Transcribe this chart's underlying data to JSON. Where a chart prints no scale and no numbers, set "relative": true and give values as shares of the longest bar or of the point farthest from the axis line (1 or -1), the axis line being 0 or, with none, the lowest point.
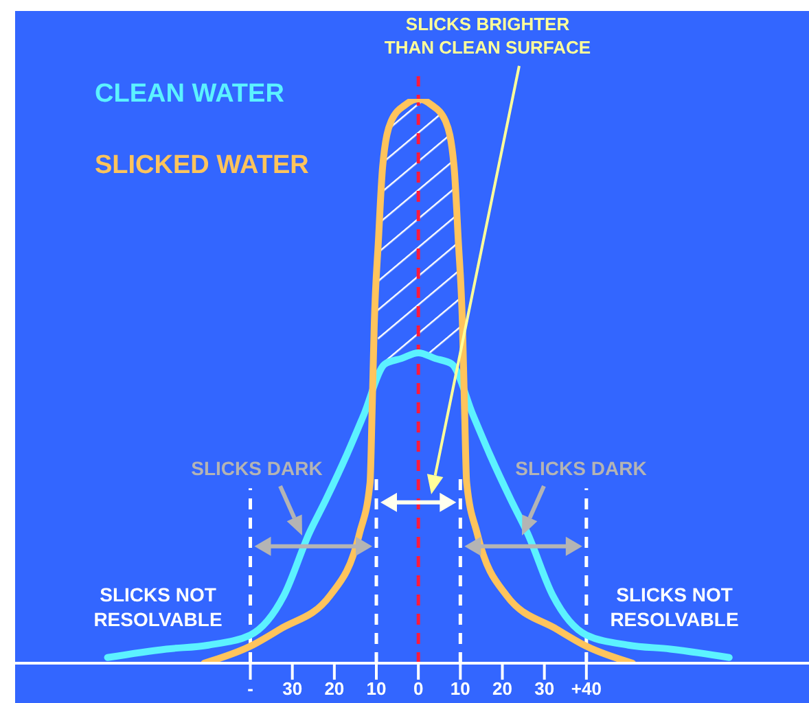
{
  "chart_data": {
    "type": "line",
    "relative": true,
    "legend": "top left",
    "marker": "none",
    "xlim": [
      -96,
      93
    ],
    "xticks": [
      {
        "value": -40,
        "label": "-"
      },
      {
        "value": -30,
        "label": "30"
      },
      {
        "value": -20,
        "label": "20"
      },
      {
        "value": -10,
        "label": "10"
      },
      0,
      10,
      20,
      30,
      {
        "value": 40,
        "label": "+40"
      }
    ],
    "series": [
      {
        "name": "CLEAN WATER",
        "color": "#5cf2ff",
        "x": [
          -74,
          -60,
          -50,
          -40,
          -32,
          -26,
          -22,
          -17,
          -13,
          -8,
          -4,
          0,
          4,
          8,
          13,
          17,
          22,
          26,
          32,
          40,
          50,
          60,
          74
        ],
        "values": [
          0.01,
          0.025,
          0.032,
          0.05,
          0.12,
          0.23,
          0.29,
          0.37,
          0.44,
          0.53,
          0.54,
          0.55,
          0.54,
          0.53,
          0.44,
          0.37,
          0.29,
          0.23,
          0.12,
          0.05,
          0.032,
          0.025,
          0.01
        ]
      },
      {
        "name": "SLICKED WATER",
        "color": "#ffc45c",
        "x": [
          -51,
          -40,
          -33,
          -21,
          -14,
          -11.5,
          -11,
          -10.5,
          -9.5,
          -8.5,
          -6.5,
          -3,
          0,
          3,
          6.5,
          8.5,
          9.5,
          10.5,
          11,
          11.5,
          14,
          21,
          33,
          40,
          51
        ],
        "values": [
          0,
          0.03,
          0.06,
          0.12,
          0.23,
          0.32,
          0.45,
          0.6,
          0.75,
          0.88,
          0.96,
          0.99,
          1,
          0.99,
          0.96,
          0.88,
          0.75,
          0.6,
          0.45,
          0.32,
          0.23,
          0.12,
          0.06,
          0.03,
          0
        ]
      }
    ],
    "ref_lines": [
      {
        "axis": "x",
        "value": -40,
        "color": "#ffffff",
        "line_style": "dashed"
      },
      {
        "axis": "x",
        "value": -10,
        "color": "#ffffff",
        "line_style": "dashed"
      },
      {
        "axis": "x",
        "value": 0,
        "color": "#ff1a3c",
        "line_style": "dashed"
      },
      {
        "axis": "x",
        "value": 10,
        "color": "#ffffff",
        "line_style": "dashed"
      },
      {
        "axis": "x",
        "value": 40,
        "color": "#ffffff",
        "line_style": "dashed"
      }
    ],
    "annotations": [
      "SLICKS BRIGHTER THAN CLEAN SURFACE",
      "SLICKS DARK",
      "SLICKS DARK",
      "SLICKS NOT RESOLVABLE",
      "SLICKS NOT RESOLVABLE"
    ]
  }
}
